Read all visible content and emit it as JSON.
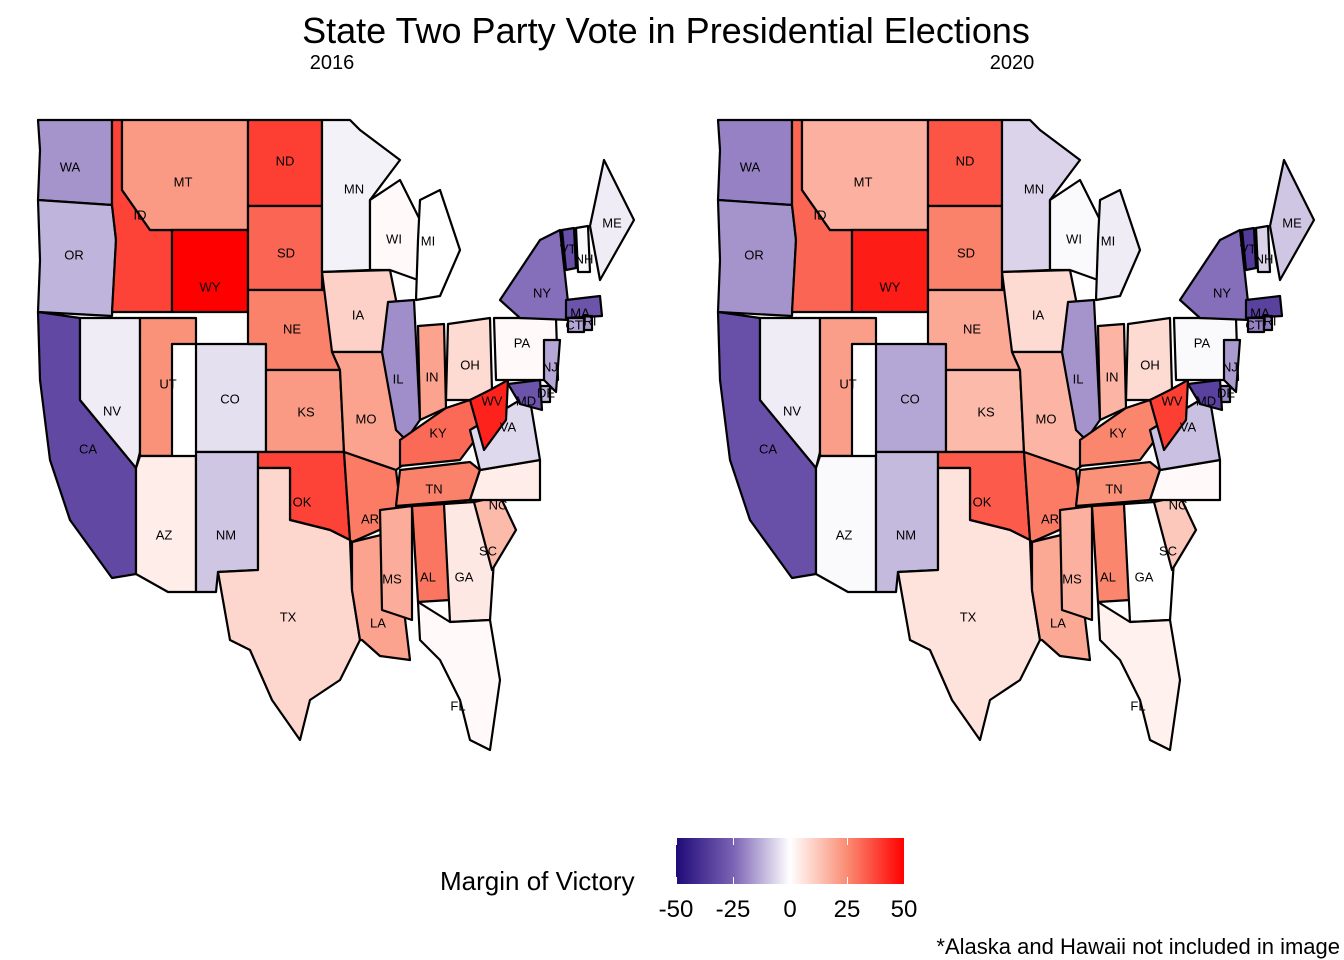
{
  "title": "State Two Party Vote in Presidential Elections",
  "footnote": "*Alaska and Hawaii not included in image",
  "legend": {
    "title": "Margin of Victory",
    "ticks": [
      "-50",
      "-25",
      "0",
      "25",
      "50"
    ],
    "tick_values": [
      -50,
      -25,
      0,
      25,
      50
    ],
    "range": [
      -50,
      50
    ],
    "colors": {
      "low": "#1f0a78",
      "mid": "#ffffff",
      "high": "#ff0000"
    }
  },
  "chart_data": {
    "type": "choropleth",
    "value_meaning": "Margin of Victory (Republican positive, Democratic negative)",
    "panels": [
      {
        "label": "2016",
        "values": {
          "WA": -17,
          "OR": -12,
          "CA": -32,
          "NV": -3,
          "ID": 38,
          "MT": 22,
          "WY": 50,
          "UT": 24,
          "CO": -5,
          "AZ": 4,
          "NM": -9,
          "ND": 39,
          "SD": 32,
          "NE": 27,
          "KS": 22,
          "OK": 38,
          "TX": 9,
          "MN": -2,
          "IA": 10,
          "MO": 20,
          "AR": 28,
          "LA": 20,
          "WI": 1,
          "IL": -18,
          "MI": 0,
          "IN": 20,
          "OH": 8,
          "KY": 31,
          "TN": 27,
          "MS": 18,
          "AL": 29,
          "GA": 5,
          "FL": 1,
          "SC": 15,
          "NC": 4,
          "VA": -6,
          "WV": 44,
          "PA": 1,
          "NY": -23,
          "VT": -30,
          "NH": -1,
          "ME": -3,
          "MA": -29,
          "CT": -14,
          "RI": -16,
          "NJ": -14,
          "DE": -12,
          "MD": -29
        }
      },
      {
        "label": "2020",
        "values": {
          "WA": -20,
          "OR": -17,
          "CA": -30,
          "NV": -3,
          "ID": 32,
          "MT": 17,
          "WY": 45,
          "UT": 21,
          "CO": -14,
          "AZ": -1,
          "NM": -11,
          "ND": 35,
          "SD": 27,
          "NE": 19,
          "KS": 15,
          "OK": 34,
          "TX": 6,
          "MN": -7,
          "IA": 8,
          "MO": 16,
          "AR": 28,
          "LA": 19,
          "WI": -1,
          "IL": -17,
          "MI": -3,
          "IN": 16,
          "OH": 8,
          "KY": 26,
          "TN": 24,
          "MS": 17,
          "AL": 26,
          "GA": 0,
          "FL": 3,
          "SC": 12,
          "NC": 1,
          "VA": -10,
          "WV": 39,
          "PA": -1,
          "NY": -23,
          "VT": -36,
          "NH": -7,
          "ME": -9,
          "MA": -34,
          "CT": -20,
          "RI": -21,
          "NJ": -16,
          "DE": -19,
          "MD": -34
        }
      }
    ],
    "excluded": [
      "AK",
      "HI"
    ]
  }
}
